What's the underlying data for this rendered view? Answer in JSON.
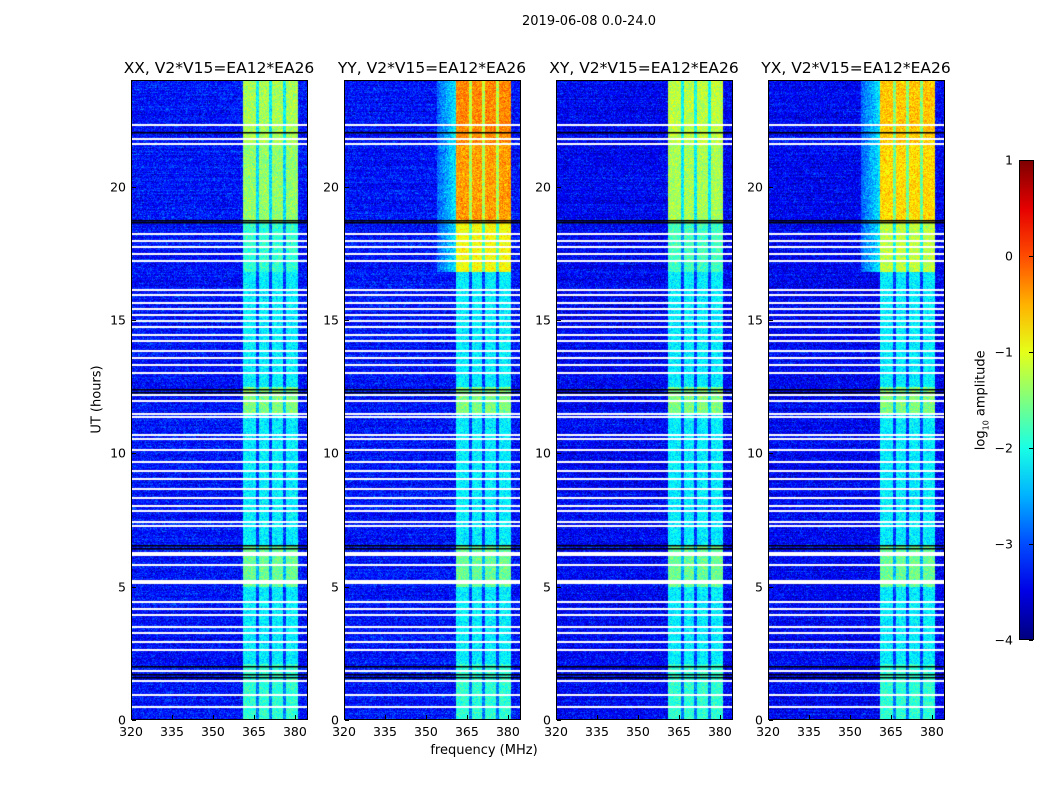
{
  "chart_data": {
    "type": "heatmap",
    "title": "2019-06-08 0.0-24.0",
    "xlabel": "frequency (MHz)",
    "ylabel": "UT (hours)",
    "xlim": [
      320,
      384.8
    ],
    "ylim": [
      0,
      24
    ],
    "x_ticks": [
      "320",
      "335",
      "350",
      "365",
      "380"
    ],
    "x_tick_values": [
      320,
      335,
      350,
      365,
      380
    ],
    "y_ticks": [
      "0",
      "5",
      "10",
      "15",
      "20"
    ],
    "y_tick_values": [
      0,
      5,
      10,
      15,
      20
    ],
    "panels": [
      {
        "title": "XX, V2*V15=EA12*EA26",
        "pol": "XX",
        "band_peak_log10": -1.4,
        "background_log10": -3.3
      },
      {
        "title": "YY, V2*V15=EA12*EA26",
        "pol": "YY",
        "band_peak_log10": -0.4,
        "background_log10": -3.3
      },
      {
        "title": "XY, V2*V15=EA12*EA26",
        "pol": "XY",
        "band_peak_log10": -1.3,
        "background_log10": -3.4
      },
      {
        "title": "YX, V2*V15=EA12*EA26",
        "pol": "YX",
        "band_peak_log10": -0.7,
        "background_log10": -3.4
      }
    ],
    "signal_band_mhz": [
      361,
      381
    ],
    "subband_gaps_mhz": [
      366,
      371,
      376
    ],
    "bright_periods_hours": [
      [
        16.8,
        24
      ],
      [
        11.5,
        12.5
      ],
      [
        5.0,
        6.6
      ],
      [
        0,
        2.1
      ]
    ],
    "flagged_white_hours": [
      22.4,
      21.85,
      21.66,
      18.3,
      18.05,
      17.8,
      17.55,
      17.3,
      16.2,
      16.0,
      15.7,
      15.5,
      15.25,
      15.05,
      14.8,
      14.5,
      14.3,
      13.9,
      13.65,
      13.4,
      13.1,
      12.25,
      12.05,
      11.55,
      11.45,
      10.75,
      10.6,
      10.2,
      9.75,
      9.4,
      9.1,
      8.75,
      8.4,
      8.1,
      7.9,
      7.5,
      7.35,
      6.35,
      6.25,
      5.9,
      5.3,
      5.2,
      4.5,
      4.25,
      4.0,
      3.55,
      3.35,
      3.0,
      2.7,
      1.9,
      1.55,
      1.0,
      0.55
    ],
    "flagged_black_hours": [
      22.1,
      18.8,
      18.7,
      12.45,
      12.35,
      6.6,
      6.5,
      2.05,
      1.75,
      1.65
    ],
    "colorbar": {
      "label": "log₁₀ amplitude",
      "label_base": "log",
      "label_sub": "10",
      "label_rest": " amplitude",
      "colormap": "jet",
      "range": [
        -4,
        1
      ],
      "ticks": [
        "−4",
        "−3",
        "−2",
        "−1",
        "0",
        "1"
      ],
      "tick_values": [
        -4,
        -3,
        -2,
        -1,
        0,
        1
      ]
    }
  }
}
